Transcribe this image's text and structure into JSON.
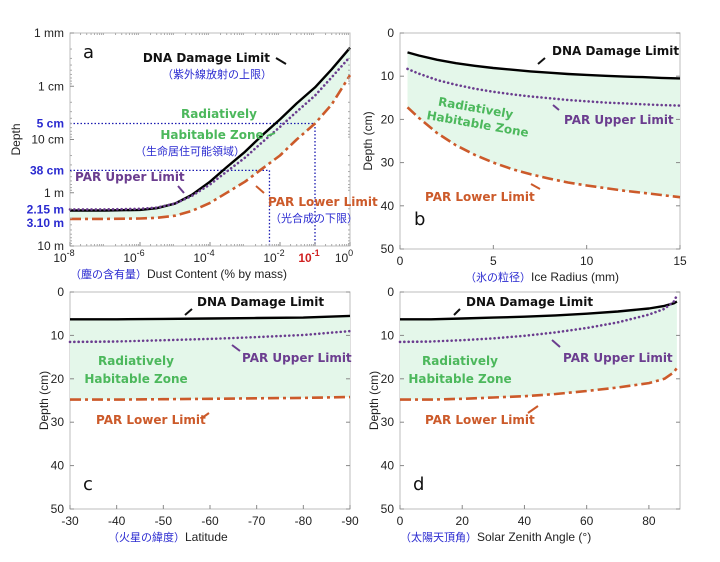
{
  "colors": {
    "dna": "#000000",
    "par_upper": "#6b3d8f",
    "par_lower": "#cc5a2a",
    "zone_fill": "#e4f7ea",
    "zone_text": "#4cb85c",
    "jp_text": "#2a2ad0",
    "highlight_tick": "#d02020",
    "guide": "#1a1ab0"
  },
  "chart_data": [
    {
      "id": "a",
      "type": "line",
      "panel_label": "a",
      "xscale": "log",
      "yscale": "log",
      "xlabel_jp": "（塵の含有量）",
      "xlabel": "Dust Content (% by mass)",
      "ylabel": "Depth",
      "xlim": [
        1e-08,
        1
      ],
      "ylim_m": [
        0.001,
        10
      ],
      "y_reversed": true,
      "xticks": [
        {
          "v": 1e-08,
          "base": "10",
          "exp": "-8"
        },
        {
          "v": 1e-06,
          "base": "10",
          "exp": "-6"
        },
        {
          "v": 0.0001,
          "base": "10",
          "exp": "-4"
        },
        {
          "v": 0.01,
          "base": "10",
          "exp": "-2"
        },
        {
          "v": 0.1,
          "base": "10",
          "exp": "-1",
          "highlight": true
        },
        {
          "v": 1,
          "base": "10",
          "exp": "0"
        }
      ],
      "yticks": [
        {
          "v": 0.001,
          "label": "1 mm"
        },
        {
          "v": 0.01,
          "label": "1 cm"
        },
        {
          "v": 0.1,
          "label": "10 cm"
        },
        {
          "v": 1,
          "label": "1 m"
        },
        {
          "v": 10,
          "label": "10 m"
        }
      ],
      "extra_yticks": [
        {
          "v": 0.05,
          "label": "5 cm"
        },
        {
          "v": 0.38,
          "label": "38 cm"
        },
        {
          "v": 2.15,
          "label": "2.15 m"
        },
        {
          "v": 3.1,
          "label": "3.10 m"
        }
      ],
      "guides": [
        {
          "x": 0.1,
          "y": 0.05
        },
        {
          "x": 0.005,
          "y": 0.38
        }
      ],
      "x": [
        1e-08,
        1e-07,
        1e-06,
        3e-06,
        1e-05,
        3e-05,
        0.0001,
        0.0003,
        0.001,
        0.003,
        0.01,
        0.03,
        0.1,
        0.3,
        1
      ],
      "series": [
        {
          "name": "DNA Damage Limit",
          "key": "dna",
          "values_m": [
            2.15,
            2.15,
            2.1,
            1.95,
            1.6,
            1.1,
            0.62,
            0.33,
            0.17,
            0.085,
            0.042,
            0.021,
            0.0105,
            0.0048,
            0.0019
          ]
        },
        {
          "name": "PAR Upper Limit",
          "key": "par_upper",
          "values_m": [
            2.05,
            2.05,
            2.0,
            1.9,
            1.6,
            1.15,
            0.7,
            0.4,
            0.22,
            0.115,
            0.058,
            0.03,
            0.015,
            0.0068,
            0.0028
          ]
        },
        {
          "name": "PAR Lower Limit",
          "key": "par_lower",
          "values_m": [
            3.1,
            3.1,
            3.05,
            2.95,
            2.7,
            2.2,
            1.55,
            1.0,
            0.62,
            0.36,
            0.2,
            0.1,
            0.05,
            0.022,
            0.0062
          ]
        }
      ],
      "annotations": {
        "dna": "DNA Damage Limit",
        "dna_jp": "（紫外線放射の上限）",
        "zone1": "Radiatively",
        "zone2": "Habitable Zone",
        "zone_jp": "（生命居住可能領域）",
        "upper": "PAR Upper Limit",
        "lower": "PAR Lower Limit",
        "lower_jp": "（光合成の下限）"
      }
    },
    {
      "id": "b",
      "type": "line",
      "panel_label": "b",
      "xlabel_jp": "（氷の粒径）",
      "xlabel": "Ice Radius (mm)",
      "ylabel": "Depth (cm)",
      "xlim": [
        0,
        15
      ],
      "ylim": [
        0,
        50
      ],
      "y_reversed": true,
      "xticks": [
        0,
        5,
        10,
        15
      ],
      "yticks": [
        0,
        10,
        20,
        30,
        40,
        50
      ],
      "x": [
        0.4,
        1,
        2,
        3,
        4,
        5,
        6,
        7,
        8,
        9,
        10,
        11,
        12,
        13,
        14,
        15
      ],
      "series": [
        {
          "name": "DNA Damage Limit",
          "key": "dna",
          "values": [
            4.5,
            5.2,
            6.2,
            7.0,
            7.6,
            8.1,
            8.5,
            8.9,
            9.2,
            9.5,
            9.7,
            9.9,
            10.1,
            10.2,
            10.4,
            10.5
          ]
        },
        {
          "name": "PAR Upper Limit",
          "key": "par_upper",
          "values": [
            8.3,
            9.4,
            10.9,
            12.0,
            12.9,
            13.6,
            14.2,
            14.7,
            15.1,
            15.5,
            15.8,
            16.1,
            16.3,
            16.5,
            16.7,
            16.8
          ]
        },
        {
          "name": "PAR Lower Limit",
          "key": "par_lower",
          "values": [
            17.2,
            19.6,
            23.2,
            26.0,
            28.2,
            30.0,
            31.5,
            32.7,
            33.7,
            34.6,
            35.3,
            35.9,
            36.5,
            37.0,
            37.5,
            38.0
          ]
        }
      ],
      "annotations": {
        "dna": "DNA Damage Limit",
        "zone1": "Radiatively",
        "zone2": "Habitable Zone",
        "upper": "PAR Upper Limit",
        "lower": "PAR Lower Limit"
      }
    },
    {
      "id": "c",
      "type": "line",
      "panel_label": "c",
      "xlabel_jp": "（火星の緯度）",
      "xlabel": "Latitude",
      "ylabel": "Depth (cm)",
      "xlim": [
        -30,
        -90
      ],
      "ylim": [
        0,
        50
      ],
      "y_reversed": true,
      "xticks": [
        -30,
        -40,
        -50,
        -60,
        -70,
        -80,
        -90
      ],
      "yticks": [
        0,
        10,
        20,
        30,
        40,
        50
      ],
      "x": [
        -30,
        -40,
        -50,
        -60,
        -70,
        -80,
        -90
      ],
      "series": [
        {
          "name": "DNA Damage Limit",
          "key": "dna",
          "values": [
            6.3,
            6.3,
            6.2,
            6.1,
            6.0,
            5.9,
            5.5
          ]
        },
        {
          "name": "PAR Upper Limit",
          "key": "par_upper",
          "values": [
            11.5,
            11.4,
            11.1,
            10.8,
            10.4,
            9.9,
            9.0
          ]
        },
        {
          "name": "PAR Lower Limit",
          "key": "par_lower",
          "values": [
            24.8,
            24.8,
            24.7,
            24.6,
            24.5,
            24.4,
            24.2
          ]
        }
      ],
      "annotations": {
        "dna": "DNA Damage Limit",
        "zone1": "Radiatively",
        "zone2": "Habitable Zone",
        "upper": "PAR Upper Limit",
        "lower": "PAR Lower Limit"
      }
    },
    {
      "id": "d",
      "type": "line",
      "panel_label": "d",
      "xlabel_jp": "（太陽天頂角）",
      "xlabel": "Solar Zenith Angle (°)",
      "ylabel": "Depth (cm)",
      "xlim": [
        0,
        90
      ],
      "ylim": [
        0,
        50
      ],
      "y_reversed": true,
      "xticks": [
        0,
        20,
        40,
        60,
        80
      ],
      "yticks": [
        0,
        10,
        20,
        30,
        40,
        50
      ],
      "x": [
        0,
        10,
        20,
        30,
        40,
        50,
        60,
        70,
        80,
        85,
        88,
        89
      ],
      "series": [
        {
          "name": "DNA Damage Limit",
          "key": "dna",
          "values": [
            6.3,
            6.3,
            6.1,
            5.9,
            5.7,
            5.4,
            5.0,
            4.5,
            3.8,
            3.2,
            2.6,
            2.2
          ]
        },
        {
          "name": "PAR Upper Limit",
          "key": "par_upper",
          "values": [
            11.5,
            11.4,
            11.1,
            10.7,
            10.1,
            9.3,
            8.3,
            7.0,
            5.2,
            3.9,
            2.2,
            0.8
          ]
        },
        {
          "name": "PAR Lower Limit",
          "key": "par_lower",
          "values": [
            24.8,
            24.8,
            24.6,
            24.3,
            24.0,
            23.5,
            22.8,
            22.0,
            21.0,
            20.0,
            18.5,
            17.5
          ]
        }
      ],
      "annotations": {
        "dna": "DNA Damage Limit",
        "zone1": "Radiatively",
        "zone2": "Habitable Zone",
        "upper": "PAR Upper Limit",
        "lower": "PAR Lower Limit"
      }
    }
  ]
}
